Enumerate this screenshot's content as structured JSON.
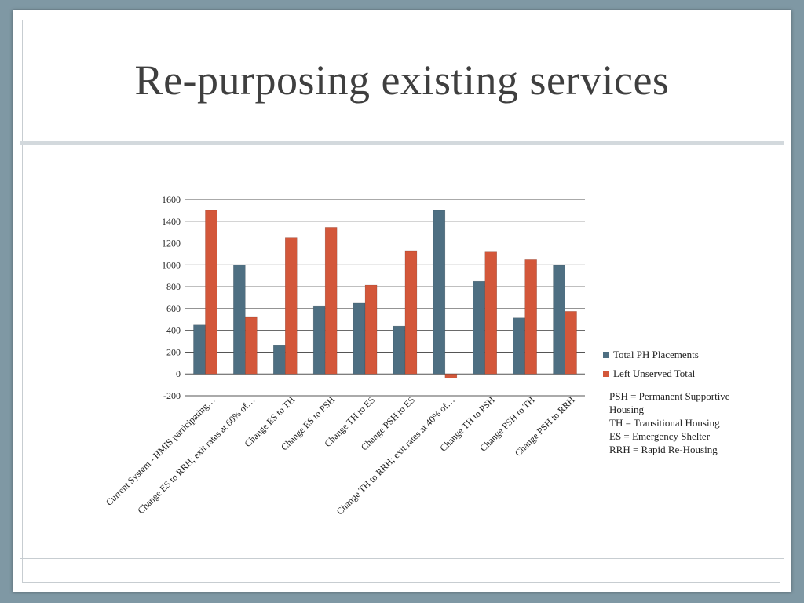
{
  "slide": {
    "title": "Re-purposing existing services",
    "notes": [
      "PSH = Permanent Supportive Housing",
      "TH = Transitional Housing",
      "ES = Emergency Shelter",
      "RRH = Rapid Re-Housing"
    ]
  },
  "chart_data": {
    "type": "bar",
    "title": "",
    "xlabel": "",
    "ylabel": "",
    "ylim": [
      -200,
      1600
    ],
    "yticks": [
      -200,
      0,
      200,
      400,
      600,
      800,
      1000,
      1200,
      1400,
      1600
    ],
    "grid": true,
    "legend": "right",
    "categories": [
      "Current System - HMIS participating…",
      "Change ES to RRH; exit rates at 60% of…",
      "Change ES to TH",
      "Change ES to PSH",
      "Change TH to ES",
      "Change PSH to ES",
      "Change TH to RRH; exit rates at 40% of…",
      "Change TH to PSH",
      "Change PSH to TH",
      "Change PSH to RRH"
    ],
    "series": [
      {
        "name": "Total PH Placements",
        "color": "#4e6f82",
        "values": [
          450,
          1000,
          260,
          620,
          650,
          440,
          1500,
          850,
          515,
          995
        ]
      },
      {
        "name": "Left Unserved Total",
        "color": "#d3573a",
        "values": [
          1500,
          520,
          1250,
          1345,
          815,
          1125,
          -40,
          1120,
          1050,
          575
        ]
      }
    ]
  }
}
